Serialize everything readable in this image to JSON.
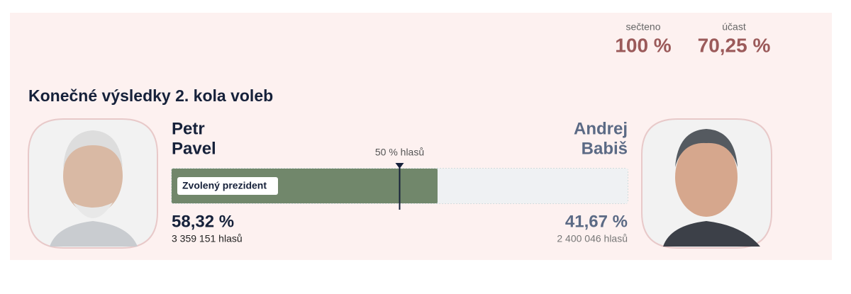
{
  "header": {
    "stats": [
      {
        "label": "sečteno",
        "value": "100 %"
      },
      {
        "label": "účast",
        "value": "70,25 %"
      }
    ]
  },
  "title": "Konečné výsledky 2. kola voleb",
  "scale": [
    0,
    100
  ],
  "majority": {
    "value": 50,
    "label": "50 % hlasů"
  },
  "candidates": [
    {
      "first_name": "Petr",
      "last_name": "Pavel",
      "share": {
        "value": 58.32,
        "label": "58,32 %"
      },
      "votes": "3 359 151 hlasů",
      "badge": "Zvolený prezident",
      "color": "#71876b"
    },
    {
      "first_name": "Andrej",
      "last_name": "Babiš",
      "share": {
        "value": 41.67,
        "label": "41,67 %"
      },
      "votes": "2 400 046 hlasů",
      "color": "#eff1f3"
    }
  ]
}
